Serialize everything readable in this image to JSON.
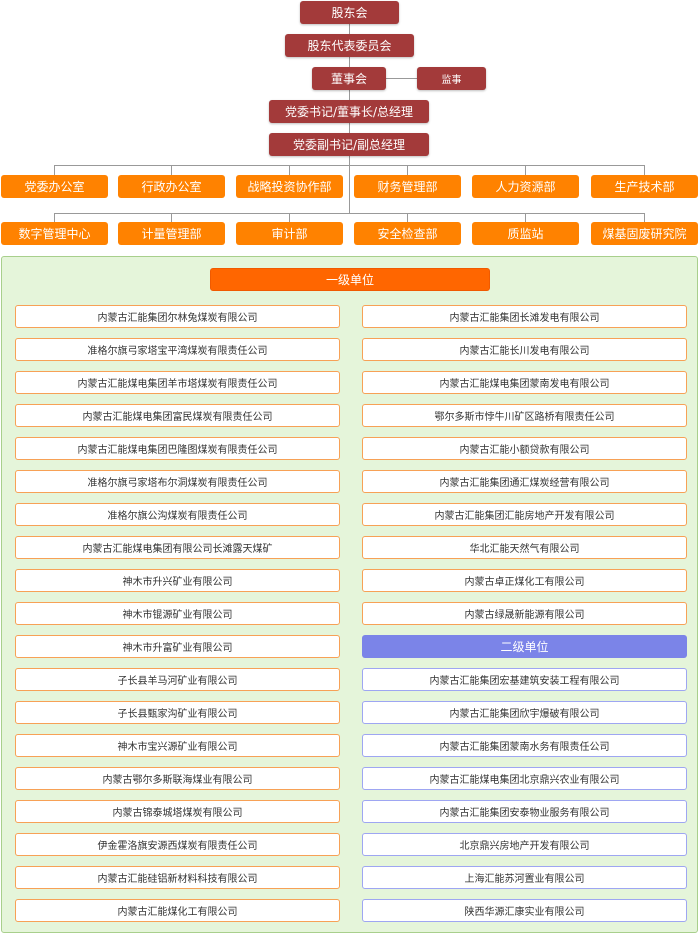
{
  "colors": {
    "leadership": "#a33a3a",
    "department": "#ff8200",
    "level1_header": "#ff6600",
    "level2_header": "#7b84e8",
    "panel": "#e5f5da"
  },
  "leadership": {
    "shareholders": "股东会",
    "shareholder_reps": "股东代表委员会",
    "board": "董事会",
    "supervisor": "监事",
    "chairman": "党委书记/董事长/总经理",
    "deputy": "党委副书记/副总经理"
  },
  "departments_row1": [
    "党委办公室",
    "行政办公室",
    "战略投资协作部",
    "财务管理部",
    "人力资源部",
    "生产技术部"
  ],
  "departments_row2": [
    "数字管理中心",
    "计量管理部",
    "审计部",
    "安全检查部",
    "质监站",
    "煤基固废研究院"
  ],
  "level1": {
    "title": "一级单位",
    "left": [
      "内蒙古汇能集团尔林兔煤炭有限公司",
      "准格尔旗弓家塔宝平湾煤炭有限责任公司",
      "内蒙古汇能煤电集团羊市塔煤炭有限责任公司",
      "内蒙古汇能煤电集团富民煤炭有限责任公司",
      "内蒙古汇能煤电集团巴隆图煤炭有限责任公司",
      "准格尔旗弓家塔布尔洞煤炭有限责任公司",
      "准格尔旗公沟煤炭有限责任公司",
      "内蒙古汇能煤电集团有限公司长滩露天煤矿",
      "神木市升兴矿业有限公司",
      "神木市锟源矿业有限公司",
      "神木市升富矿业有限公司",
      "子长县羊马河矿业有限公司",
      "子长县甄家沟矿业有限公司",
      "神木市宝兴源矿业有限公司",
      "内蒙古鄂尔多斯联海煤业有限公司",
      "内蒙古锦泰城塔煤炭有限公司",
      "伊金霍洛旗安源西煤炭有限责任公司",
      "内蒙古汇能硅铝新材料科技有限公司",
      "内蒙古汇能煤化工有限公司"
    ],
    "right": [
      "内蒙古汇能集团长滩发电有限公司",
      "内蒙古汇能长川发电有限公司",
      "内蒙古汇能煤电集团蒙南发电有限公司",
      "鄂尔多斯市悖牛川矿区路桥有限责任公司",
      "内蒙古汇能小额贷款有限公司",
      "内蒙古汇能集团通汇煤炭经营有限公司",
      "内蒙古汇能集团汇能房地产开发有限公司",
      "华北汇能天然气有限公司",
      "内蒙古卓正煤化工有限公司",
      "内蒙古绿晟新能源有限公司"
    ]
  },
  "level2": {
    "title": "二级单位",
    "items": [
      "内蒙古汇能集团宏基建筑安装工程有限公司",
      "内蒙古汇能集团欣宇爆破有限公司",
      "内蒙古汇能集团蒙南水务有限责任公司",
      "内蒙古汇能煤电集团北京鼎兴农业有限公司",
      "内蒙古汇能集团安泰物业服务有限公司",
      "北京鼎兴房地产开发有限公司",
      "上海汇能苏河置业有限公司",
      "陕西华源汇康实业有限公司"
    ]
  }
}
